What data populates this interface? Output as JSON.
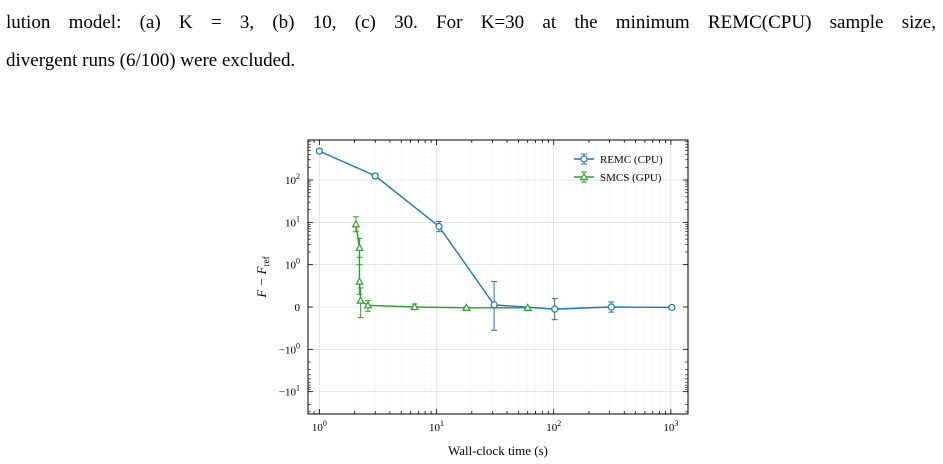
{
  "caption": {
    "line1": "lution model: (a) K = 3, (b) 10, (c) 30. For K=30 at the minimum REMC(CPU) sample size,",
    "line2": "divergent runs (6/100) were excluded."
  },
  "chart_data": {
    "type": "line",
    "xscale": "log",
    "yscale": "symlog",
    "xlabel": "Wall-clock time (s)",
    "ylabel": "F − F_ref",
    "xlim": [
      0.8,
      1400
    ],
    "x_ticks": [
      {
        "value": 1,
        "base": "10",
        "exp": "0"
      },
      {
        "value": 10,
        "base": "10",
        "exp": "1"
      },
      {
        "value": 100,
        "base": "10",
        "exp": "2"
      },
      {
        "value": 1000,
        "base": "10",
        "exp": "3"
      }
    ],
    "y_ticks": [
      {
        "value": 100,
        "base": "10",
        "exp": "2"
      },
      {
        "value": 10,
        "base": "10",
        "exp": "1"
      },
      {
        "value": 1,
        "base": "10",
        "exp": "0"
      },
      {
        "value": 0,
        "base": "0",
        "exp": ""
      },
      {
        "value": -1,
        "base": "−10",
        "exp": "0"
      },
      {
        "value": -10,
        "base": "−10",
        "exp": "1"
      }
    ],
    "grid": true,
    "legend": "top-right",
    "series": [
      {
        "name": "REMC (CPU)",
        "color": "#1f77b4",
        "marker": "circle",
        "points": [
          {
            "x": 1.0,
            "y": 480,
            "lo": 430,
            "hi": 540
          },
          {
            "x": 3.0,
            "y": 125,
            "lo": 110,
            "hi": 140
          },
          {
            "x": 10.5,
            "y": 8.0,
            "lo": 6.0,
            "hi": 10.5
          },
          {
            "x": 31,
            "y": 0.05,
            "lo": -0.55,
            "hi": 0.6
          },
          {
            "x": 102,
            "y": -0.05,
            "lo": -0.3,
            "hi": 0.2
          },
          {
            "x": 310,
            "y": 0.0,
            "lo": -0.12,
            "hi": 0.12
          },
          {
            "x": 1020,
            "y": -0.01,
            "lo": -0.05,
            "hi": 0.04
          }
        ]
      },
      {
        "name": "SMCS (GPU)",
        "color": "#2ca02c",
        "marker": "triangle",
        "points": [
          {
            "x": 2.05,
            "y": 9.0,
            "lo": 6.0,
            "hi": 13.5
          },
          {
            "x": 2.2,
            "y": 2.5,
            "lo": 1.5,
            "hi": 4.2
          },
          {
            "x": 2.2,
            "y": 0.6,
            "lo": 0.3,
            "hi": 1.0
          },
          {
            "x": 2.25,
            "y": 0.15,
            "lo": -0.25,
            "hi": 0.45
          },
          {
            "x": 2.6,
            "y": 0.04,
            "lo": -0.1,
            "hi": 0.15
          },
          {
            "x": 6.5,
            "y": 0.0,
            "lo": -0.06,
            "hi": 0.07
          },
          {
            "x": 18,
            "y": -0.02,
            "lo": -0.04,
            "hi": 0.0
          },
          {
            "x": 60,
            "y": -0.02,
            "lo": -0.04,
            "hi": 0.0
          }
        ]
      }
    ]
  }
}
